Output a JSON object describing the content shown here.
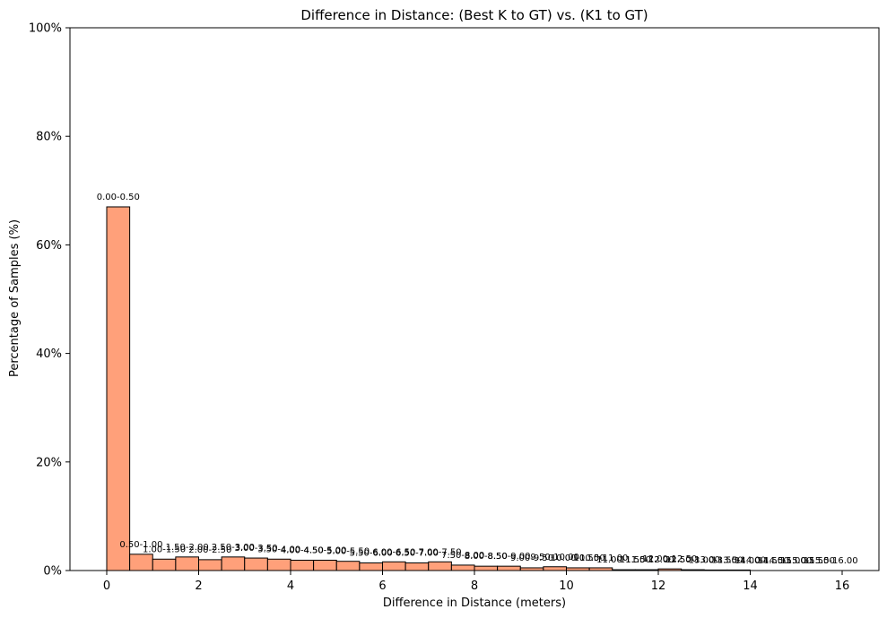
{
  "chart_data": {
    "type": "bar",
    "title": "Difference in Distance: (Best K to GT) vs. (K1 to GT)",
    "xlabel": "Difference in Distance (meters)",
    "ylabel": "Percentage of Samples (%)",
    "xlim": [
      -0.8,
      16.8
    ],
    "ylim": [
      0,
      100
    ],
    "xticks": [
      0,
      2,
      4,
      6,
      8,
      10,
      12,
      14,
      16
    ],
    "xtick_labels": [
      "0",
      "2",
      "4",
      "6",
      "8",
      "10",
      "12",
      "14",
      "16"
    ],
    "yticks": [
      0,
      20,
      40,
      60,
      80,
      100
    ],
    "ytick_labels": [
      "0%",
      "20%",
      "40%",
      "60%",
      "80%",
      "100%"
    ],
    "bar_color": "#ffa07a",
    "edge_color": "#000000",
    "grid": false,
    "bins": [
      {
        "start": 0.0,
        "end": 0.5,
        "value": 67.0,
        "label": "0.00-0.50"
      },
      {
        "start": 0.5,
        "end": 1.0,
        "value": 3.0,
        "label": "0.50-1.00"
      },
      {
        "start": 1.0,
        "end": 1.5,
        "value": 2.1,
        "label": "1.00-1.50"
      },
      {
        "start": 1.5,
        "end": 2.0,
        "value": 2.5,
        "label": "1.50-2.00"
      },
      {
        "start": 2.0,
        "end": 2.5,
        "value": 2.0,
        "label": "2.00-2.50"
      },
      {
        "start": 2.5,
        "end": 3.0,
        "value": 2.5,
        "label": "2.50-3.00"
      },
      {
        "start": 3.0,
        "end": 3.5,
        "value": 2.3,
        "label": "3.00-3.50"
      },
      {
        "start": 3.5,
        "end": 4.0,
        "value": 2.1,
        "label": "3.50-4.00"
      },
      {
        "start": 4.0,
        "end": 4.5,
        "value": 1.9,
        "label": "4.00-4.50"
      },
      {
        "start": 4.5,
        "end": 5.0,
        "value": 1.9,
        "label": "4.50-5.00"
      },
      {
        "start": 5.0,
        "end": 5.5,
        "value": 1.7,
        "label": "5.00-5.50"
      },
      {
        "start": 5.5,
        "end": 6.0,
        "value": 1.4,
        "label": "5.50-6.00"
      },
      {
        "start": 6.0,
        "end": 6.5,
        "value": 1.6,
        "label": "6.00-6.50"
      },
      {
        "start": 6.5,
        "end": 7.0,
        "value": 1.4,
        "label": "6.50-7.00"
      },
      {
        "start": 7.0,
        "end": 7.5,
        "value": 1.6,
        "label": "7.00-7.50"
      },
      {
        "start": 7.5,
        "end": 8.0,
        "value": 1.0,
        "label": "7.50-8.00"
      },
      {
        "start": 8.0,
        "end": 8.5,
        "value": 0.8,
        "label": "8.00-8.50"
      },
      {
        "start": 8.5,
        "end": 9.0,
        "value": 0.8,
        "label": "8.50-9.00"
      },
      {
        "start": 9.0,
        "end": 9.5,
        "value": 0.5,
        "label": "9.00-9.50"
      },
      {
        "start": 9.5,
        "end": 10.0,
        "value": 0.7,
        "label": "9.50-10.00"
      },
      {
        "start": 10.0,
        "end": 10.5,
        "value": 0.5,
        "label": "10.00-10.50"
      },
      {
        "start": 10.5,
        "end": 11.0,
        "value": 0.5,
        "label": "10.50-11.00"
      },
      {
        "start": 11.0,
        "end": 11.5,
        "value": 0.15,
        "label": "11.00-11.50"
      },
      {
        "start": 11.5,
        "end": 12.0,
        "value": 0.15,
        "label": "11.50-12.00"
      },
      {
        "start": 12.0,
        "end": 12.5,
        "value": 0.3,
        "label": "12.00-12.50"
      },
      {
        "start": 12.5,
        "end": 13.0,
        "value": 0.15,
        "label": "12.50-13.00"
      },
      {
        "start": 13.0,
        "end": 13.5,
        "value": 0.1,
        "label": "13.00-13.50"
      },
      {
        "start": 13.5,
        "end": 14.0,
        "value": 0.1,
        "label": "13.50-14.00"
      },
      {
        "start": 14.0,
        "end": 14.5,
        "value": 0.0,
        "label": "14.00-14.50"
      },
      {
        "start": 14.5,
        "end": 15.0,
        "value": 0.0,
        "label": "14.50-15.00"
      },
      {
        "start": 15.0,
        "end": 15.5,
        "value": 0.0,
        "label": "15.00-15.50"
      },
      {
        "start": 15.5,
        "end": 16.0,
        "value": 0.0,
        "label": "15.50-16.00"
      }
    ]
  }
}
